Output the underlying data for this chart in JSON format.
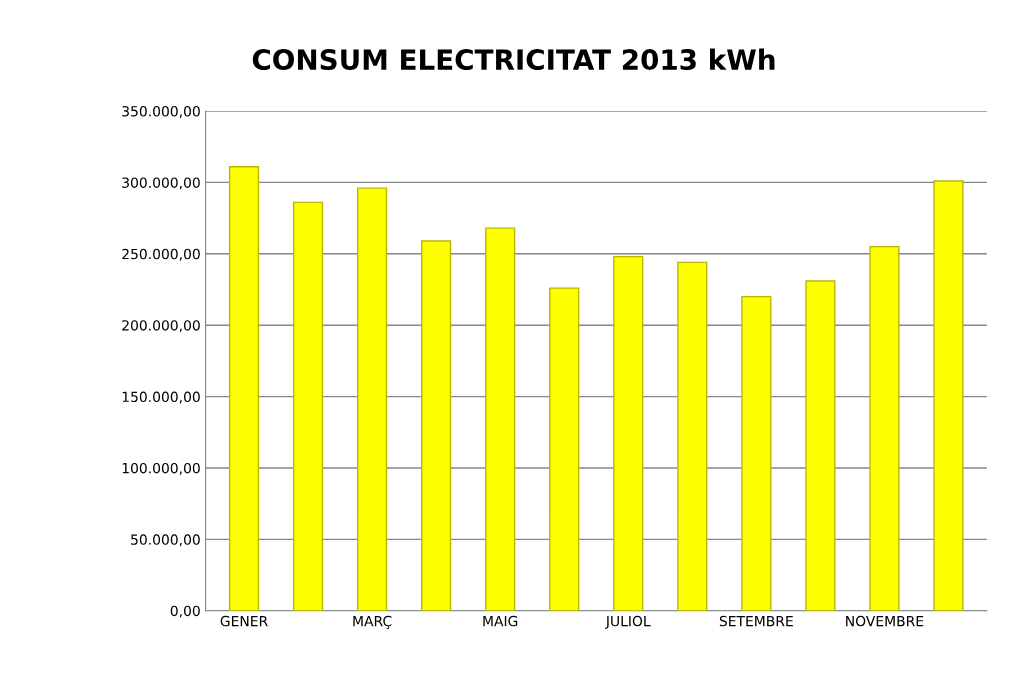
{
  "chart_data": {
    "type": "bar",
    "title": "CONSUM ELECTRICITAT 2013 kWh",
    "categories": [
      "GENER",
      null,
      "MARÇ",
      null,
      "MAIG",
      null,
      "JULIOL",
      null,
      "SETEMBRE",
      null,
      "NOVEMBRE",
      null
    ],
    "values": [
      311000,
      286000,
      296000,
      259000,
      268000,
      226000,
      248000,
      244000,
      220000,
      231000,
      255000,
      301000
    ],
    "color": "#ffff00",
    "ylim": [
      0,
      350000
    ],
    "yticks": [
      {
        "value": 0,
        "label": "0,00"
      },
      {
        "value": 50000,
        "label": "50.000,00"
      },
      {
        "value": 100000,
        "label": "100.000,00"
      },
      {
        "value": 150000,
        "label": "150.000,00"
      },
      {
        "value": 200000,
        "label": "200.000,00"
      },
      {
        "value": 250000,
        "label": "250.000,00"
      },
      {
        "value": 300000,
        "label": "300.000,00"
      },
      {
        "value": 350000,
        "label": "350.000,00"
      }
    ],
    "grid": "y"
  }
}
